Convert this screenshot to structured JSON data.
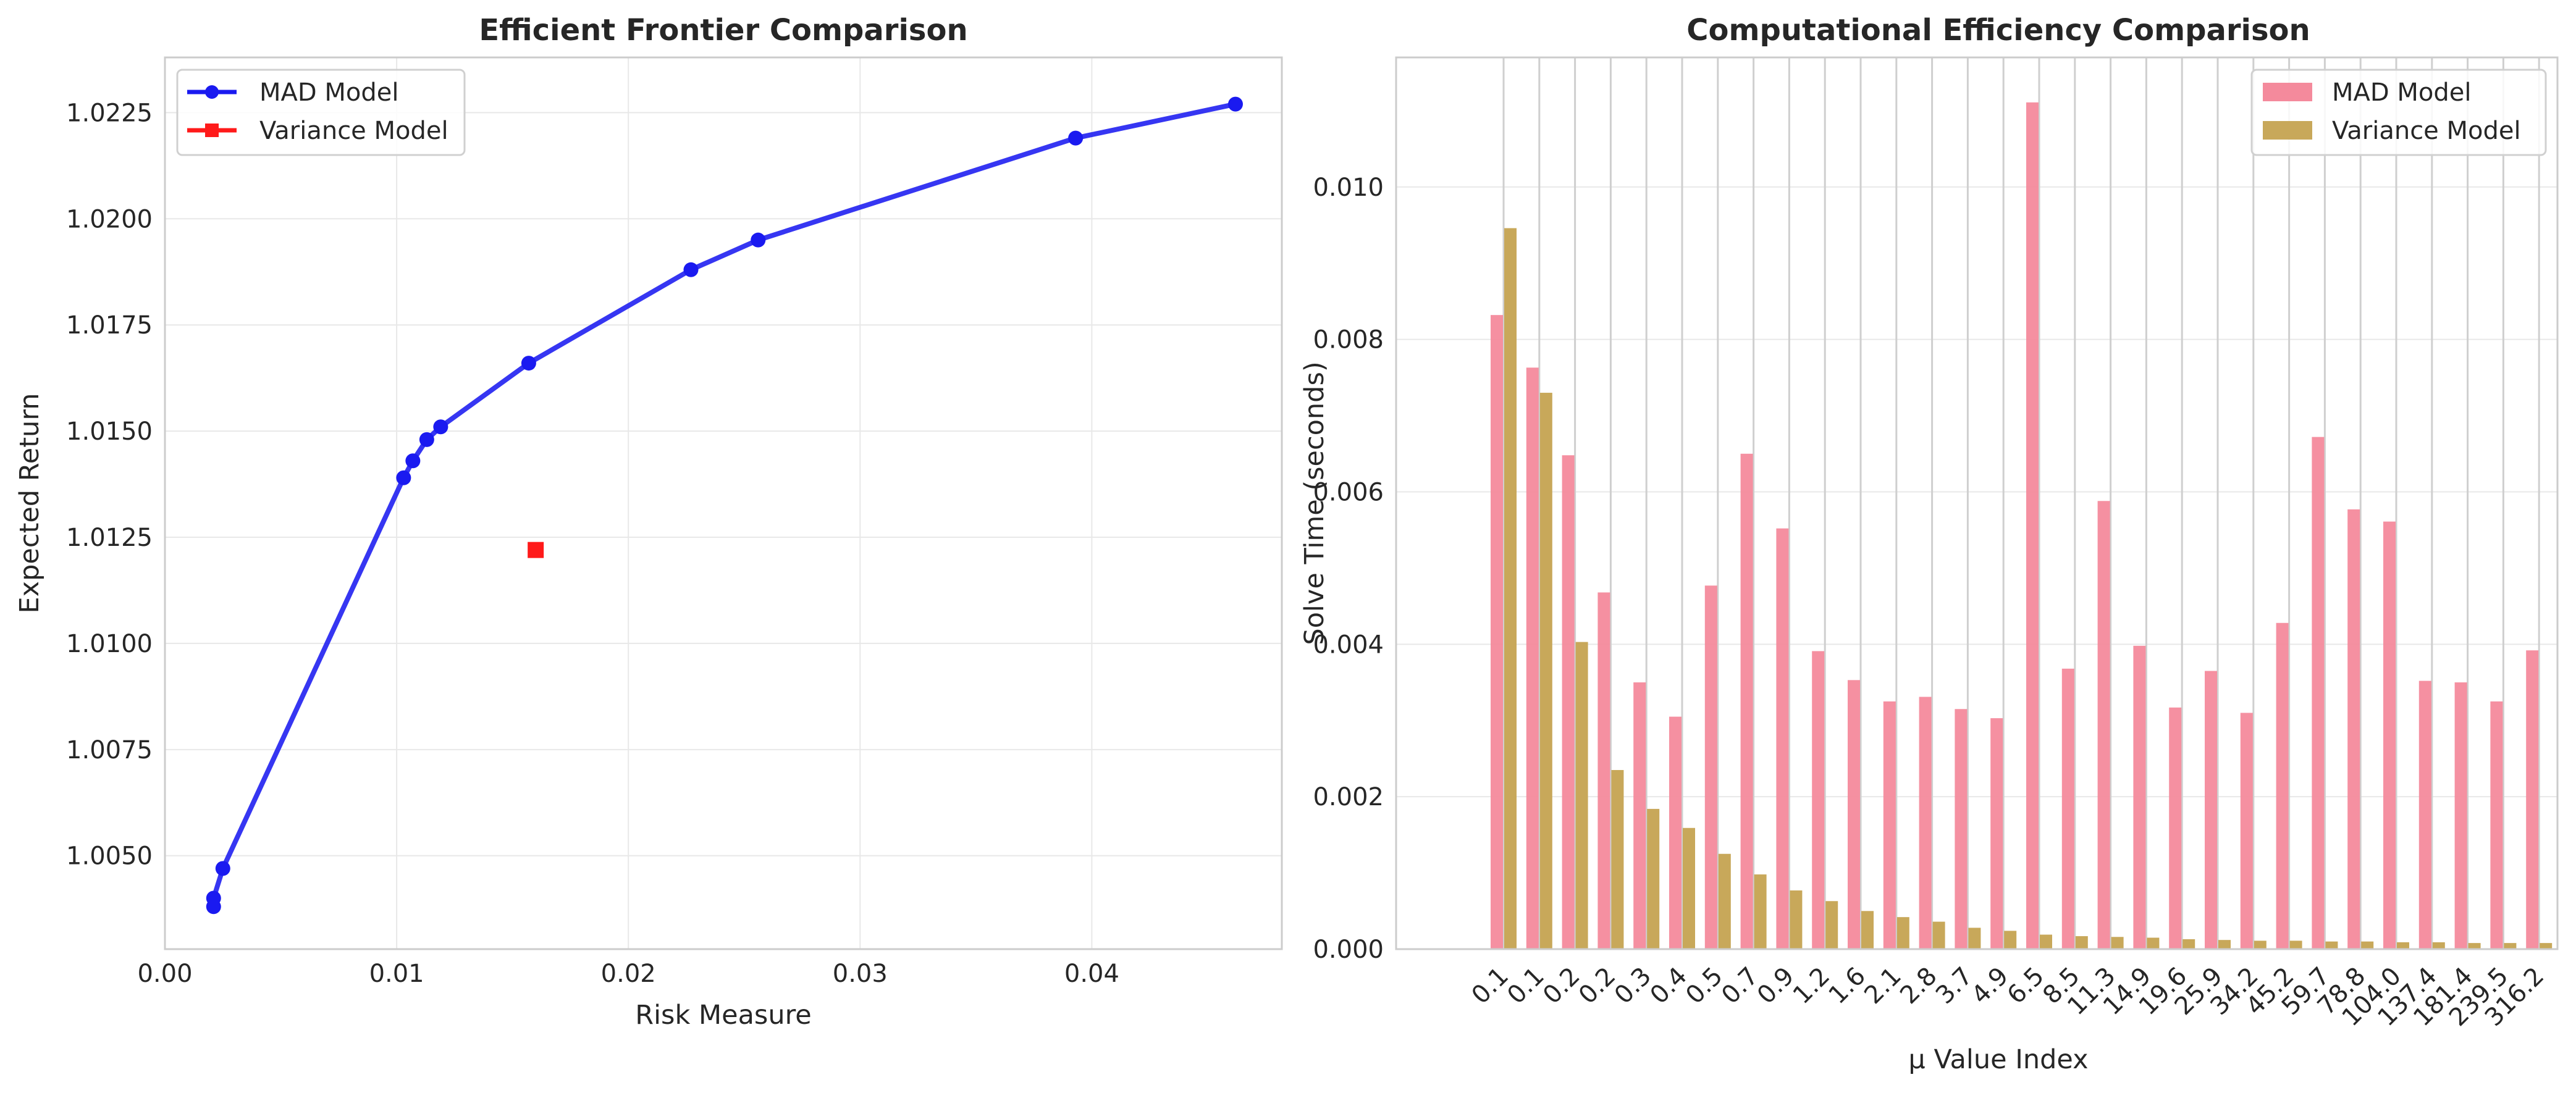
{
  "chart_data": [
    {
      "type": "line",
      "title": "Efficient Frontier Comparison",
      "xlabel": "Risk Measure",
      "ylabel": "Expected Return",
      "xlim": [
        0.0,
        0.0482
      ],
      "ylim": [
        1.0028,
        1.0238
      ],
      "x_ticks": [
        "0.00",
        "0.01",
        "0.02",
        "0.03",
        "0.04"
      ],
      "y_ticks": [
        "1.0050",
        "1.0075",
        "1.0100",
        "1.0125",
        "1.0150",
        "1.0175",
        "1.0200",
        "1.0225"
      ],
      "grid": true,
      "legend_position": "upper-left",
      "series": [
        {
          "name": "MAD Model",
          "color": "#1a1af0",
          "marker": "circle",
          "points": [
            [
              0.0021,
              1.0038
            ],
            [
              0.0021,
              1.004
            ],
            [
              0.0025,
              1.0047
            ],
            [
              0.0103,
              1.0139
            ],
            [
              0.0107,
              1.0143
            ],
            [
              0.0113,
              1.0148
            ],
            [
              0.0119,
              1.0151
            ],
            [
              0.0157,
              1.0166
            ],
            [
              0.0227,
              1.0188
            ],
            [
              0.0256,
              1.0195
            ],
            [
              0.0393,
              1.0219
            ],
            [
              0.0462,
              1.0227
            ]
          ]
        },
        {
          "name": "Variance Model",
          "color": "#ff1a1a",
          "marker": "square",
          "points": [
            [
              0.016,
              1.0122
            ]
          ]
        }
      ]
    },
    {
      "type": "bar",
      "title": "Computational Efficiency Comparison",
      "xlabel": "μ Value Index",
      "ylabel": "Solve Time (seconds)",
      "ylim": [
        0.0,
        0.0117
      ],
      "y_ticks": [
        "0.000",
        "0.002",
        "0.004",
        "0.006",
        "0.008",
        "0.010"
      ],
      "grid": true,
      "legend_position": "upper-right",
      "categories": [
        "0.1",
        "0.1",
        "0.2",
        "0.2",
        "0.3",
        "0.4",
        "0.5",
        "0.7",
        "0.9",
        "1.2",
        "1.6",
        "2.1",
        "2.8",
        "3.7",
        "4.9",
        "6.5",
        "8.5",
        "11.3",
        "14.9",
        "19.6",
        "25.9",
        "34.2",
        "45.2",
        "59.7",
        "78.8",
        "104.0",
        "137.4",
        "181.4",
        "239.5",
        "316.2"
      ],
      "series": [
        {
          "name": "MAD Model",
          "color": "#f48a9c",
          "values": [
            0.00832,
            0.00763,
            0.00648,
            0.00468,
            0.0035,
            0.00305,
            0.00477,
            0.0065,
            0.00552,
            0.00391,
            0.00353,
            0.00325,
            0.00331,
            0.00315,
            0.00303,
            0.01111,
            0.00368,
            0.00588,
            0.00398,
            0.00317,
            0.00365,
            0.0031,
            0.00428,
            0.00672,
            0.00577,
            0.00561,
            0.00352,
            0.0035,
            0.00325,
            0.00392
          ]
        },
        {
          "name": "Variance Model",
          "color": "#c8a85a",
          "values": [
            0.00946,
            0.0073,
            0.00403,
            0.00235,
            0.00184,
            0.00159,
            0.00125,
            0.00098,
            0.00077,
            0.00063,
            0.0005,
            0.00042,
            0.00036,
            0.00028,
            0.00024,
            0.00019,
            0.00017,
            0.00016,
            0.00015,
            0.00013,
            0.00012,
            0.00011,
            0.00011,
            0.0001,
            0.0001,
            9e-05,
            9e-05,
            8e-05,
            8e-05,
            8e-05
          ]
        }
      ]
    }
  ]
}
